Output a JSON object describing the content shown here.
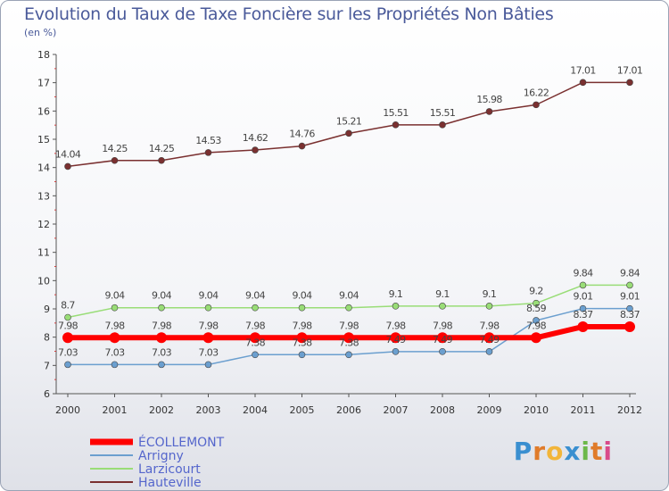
{
  "title": "Evolution du Taux de Taxe Foncière sur les Propriétés Non Bâties",
  "subtitle": "(en %)",
  "logo": "Proxiti",
  "chart_data": {
    "type": "line",
    "title": "Evolution du Taux de Taxe Foncière sur les Propriétés Non Bâties",
    "ylabel": "(en %)",
    "xlabel": "",
    "x": [
      "2000",
      "2001",
      "2002",
      "2003",
      "2004",
      "2005",
      "2006",
      "2007",
      "2008",
      "2009",
      "2010",
      "2011",
      "2012"
    ],
    "ylim": [
      6,
      18
    ],
    "yticks": [
      6,
      7,
      8,
      9,
      10,
      11,
      12,
      13,
      14,
      15,
      16,
      17,
      18
    ],
    "legend_position": "bottom-left",
    "series": [
      {
        "name": "ÉCOLLEMONT",
        "color": "#ff0000",
        "width": 6,
        "values": [
          7.98,
          7.98,
          7.98,
          7.98,
          7.98,
          7.98,
          7.98,
          7.98,
          7.98,
          7.98,
          7.98,
          8.37,
          8.37
        ],
        "labels": [
          "7.98",
          "7.98",
          "7.98",
          "7.98",
          "7.98",
          "7.98",
          "7.98",
          "7.98",
          "7.98",
          "7.98",
          "7.98",
          "8.37",
          "8.37"
        ]
      },
      {
        "name": "Arrigny",
        "color": "#6b9fcf",
        "width": 1.5,
        "values": [
          7.03,
          7.03,
          7.03,
          7.03,
          7.38,
          7.38,
          7.38,
          7.49,
          7.49,
          7.49,
          8.59,
          9.01,
          9.01
        ],
        "labels": [
          "7.03",
          "7.03",
          "7.03",
          "7.03",
          "7.38",
          "7.38",
          "7.38",
          "7.49",
          "7.49",
          "7.49",
          "8.59",
          "9.01",
          "9.01"
        ]
      },
      {
        "name": "Larzicourt",
        "color": "#99dd77",
        "width": 1.5,
        "values": [
          8.7,
          9.04,
          9.04,
          9.04,
          9.04,
          9.04,
          9.04,
          9.1,
          9.1,
          9.1,
          9.2,
          9.84,
          9.84
        ],
        "labels": [
          "8.7",
          "9.04",
          "9.04",
          "9.04",
          "9.04",
          "9.04",
          "9.04",
          "9.1",
          "9.1",
          "9.1",
          "9.2",
          "9.84",
          "9.84"
        ]
      },
      {
        "name": "Hauteville",
        "color": "#7a3030",
        "width": 1.5,
        "values": [
          14.04,
          14.25,
          14.25,
          14.53,
          14.62,
          14.76,
          15.21,
          15.51,
          15.51,
          15.98,
          16.22,
          17.01,
          17.01
        ],
        "labels": [
          "14.04",
          "14.25",
          "14.25",
          "14.53",
          "14.62",
          "14.76",
          "15.21",
          "15.51",
          "15.51",
          "15.98",
          "16.22",
          "17.01",
          "17.01"
        ]
      }
    ]
  }
}
